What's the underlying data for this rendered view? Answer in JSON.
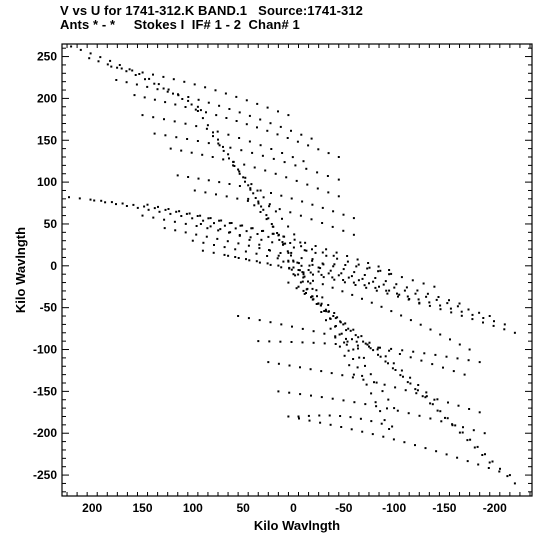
{
  "header": {
    "line1": "V vs U for 1741-312.K BAND.1   Source:1741-312",
    "line2": "Ants * - *     Stokes I  IF# 1 - 2  Chan# 1"
  },
  "chart_data": {
    "type": "scatter",
    "title": "V vs U for 1741-312.K BAND.1   Source:1741-312",
    "subtitle": "Ants * - *     Stokes I  IF# 1 - 2  Chan# 1",
    "xlabel": "Kilo Wavlngth",
    "ylabel": "Kilo Wavlngth",
    "xlim": [
      230,
      -237
    ],
    "ylim": [
      -275,
      265
    ],
    "x_inverted": true,
    "grid": false,
    "xticks": [
      200,
      150,
      100,
      50,
      0,
      -50,
      -100,
      -150,
      -200
    ],
    "yticks": [
      250,
      200,
      150,
      100,
      50,
      0,
      -50,
      -100,
      -150,
      -200,
      -250
    ],
    "marker_color": "#000000",
    "tracks": [
      {
        "from": [
          221,
          262
        ],
        "to": [
          95,
          190
        ]
      },
      {
        "from": [
          203,
          248
        ],
        "to": [
          92,
          186
        ]
      },
      {
        "from": [
          181,
          238
        ],
        "to": [
          5,
          180
        ]
      },
      {
        "from": [
          176,
          222
        ],
        "to": [
          -18,
          152
        ]
      },
      {
        "from": [
          158,
          204
        ],
        "to": [
          -45,
          130
        ]
      },
      {
        "from": [
          150,
          180
        ],
        "to": [
          -10,
          125
        ]
      },
      {
        "from": [
          138,
          158
        ],
        "to": [
          -45,
          103
        ]
      },
      {
        "from": [
          122,
          140
        ],
        "to": [
          -45,
          83
        ]
      },
      {
        "from": [
          115,
          108
        ],
        "to": [
          -60,
          57
        ]
      },
      {
        "from": [
          98,
          90
        ],
        "to": [
          -60,
          37
        ]
      },
      {
        "from": [
          223,
          82
        ],
        "to": [
          10,
          35
        ]
      },
      {
        "from": [
          198,
          78
        ],
        "to": [
          -40,
          12
        ]
      },
      {
        "from": [
          145,
          73
        ],
        "to": [
          -95,
          -5
        ]
      },
      {
        "from": [
          150,
          60
        ],
        "to": [
          -140,
          -25
        ]
      },
      {
        "from": [
          128,
          45
        ],
        "to": [
          -165,
          -45
        ]
      },
      {
        "from": [
          100,
          30
        ],
        "to": [
          -195,
          -60
        ]
      },
      {
        "from": [
          90,
          18
        ],
        "to": [
          -210,
          -70
        ]
      },
      {
        "from": [
          65,
          12
        ],
        "to": [
          -220,
          -80
        ]
      },
      {
        "from": [
          95,
          185
        ],
        "to": [
          0,
          5
        ]
      },
      {
        "from": [
          80,
          155
        ],
        "to": [
          -5,
          -5
        ]
      },
      {
        "from": [
          60,
          120
        ],
        "to": [
          -25,
          -2
        ]
      },
      {
        "from": [
          45,
          80
        ],
        "to": [
          -10,
          -8
        ]
      },
      {
        "from": [
          92,
          50
        ],
        "to": [
          5,
          5
        ]
      },
      {
        "from": [
          -5,
          -5
        ],
        "to": [
          -70,
          -110
        ]
      },
      {
        "from": [
          0,
          -2
        ],
        "to": [
          -60,
          -130
        ]
      },
      {
        "from": [
          10,
          5
        ],
        "to": [
          -100,
          -170
        ]
      },
      {
        "from": [
          -10,
          -10
        ],
        "to": [
          -95,
          -195
        ]
      },
      {
        "from": [
          55,
          -60
        ],
        "to": [
          -170,
          -130
        ]
      },
      {
        "from": [
          35,
          -90
        ],
        "to": [
          -185,
          -115
        ]
      },
      {
        "from": [
          25,
          -115
        ],
        "to": [
          -185,
          -175
        ]
      },
      {
        "from": [
          15,
          -150
        ],
        "to": [
          -190,
          -200
        ]
      },
      {
        "from": [
          5,
          -180
        ],
        "to": [
          -215,
          -250
        ]
      },
      {
        "from": [
          -5,
          -180
        ],
        "to": [
          -98,
          -192
        ]
      },
      {
        "from": [
          -5,
          -25
        ],
        "to": [
          -220,
          -260
        ]
      },
      {
        "from": [
          -10,
          -30
        ],
        "to": [
          -195,
          -235
        ]
      },
      {
        "from": [
          5,
          -20
        ],
        "to": [
          -140,
          -160
        ]
      },
      {
        "from": [
          0,
          -10
        ],
        "to": [
          -175,
          -100
        ]
      },
      {
        "from": [
          -15,
          -5
        ],
        "to": [
          -125,
          -45
        ]
      },
      {
        "from": [
          -8,
          0
        ],
        "to": [
          -95,
          -10
        ]
      }
    ]
  }
}
